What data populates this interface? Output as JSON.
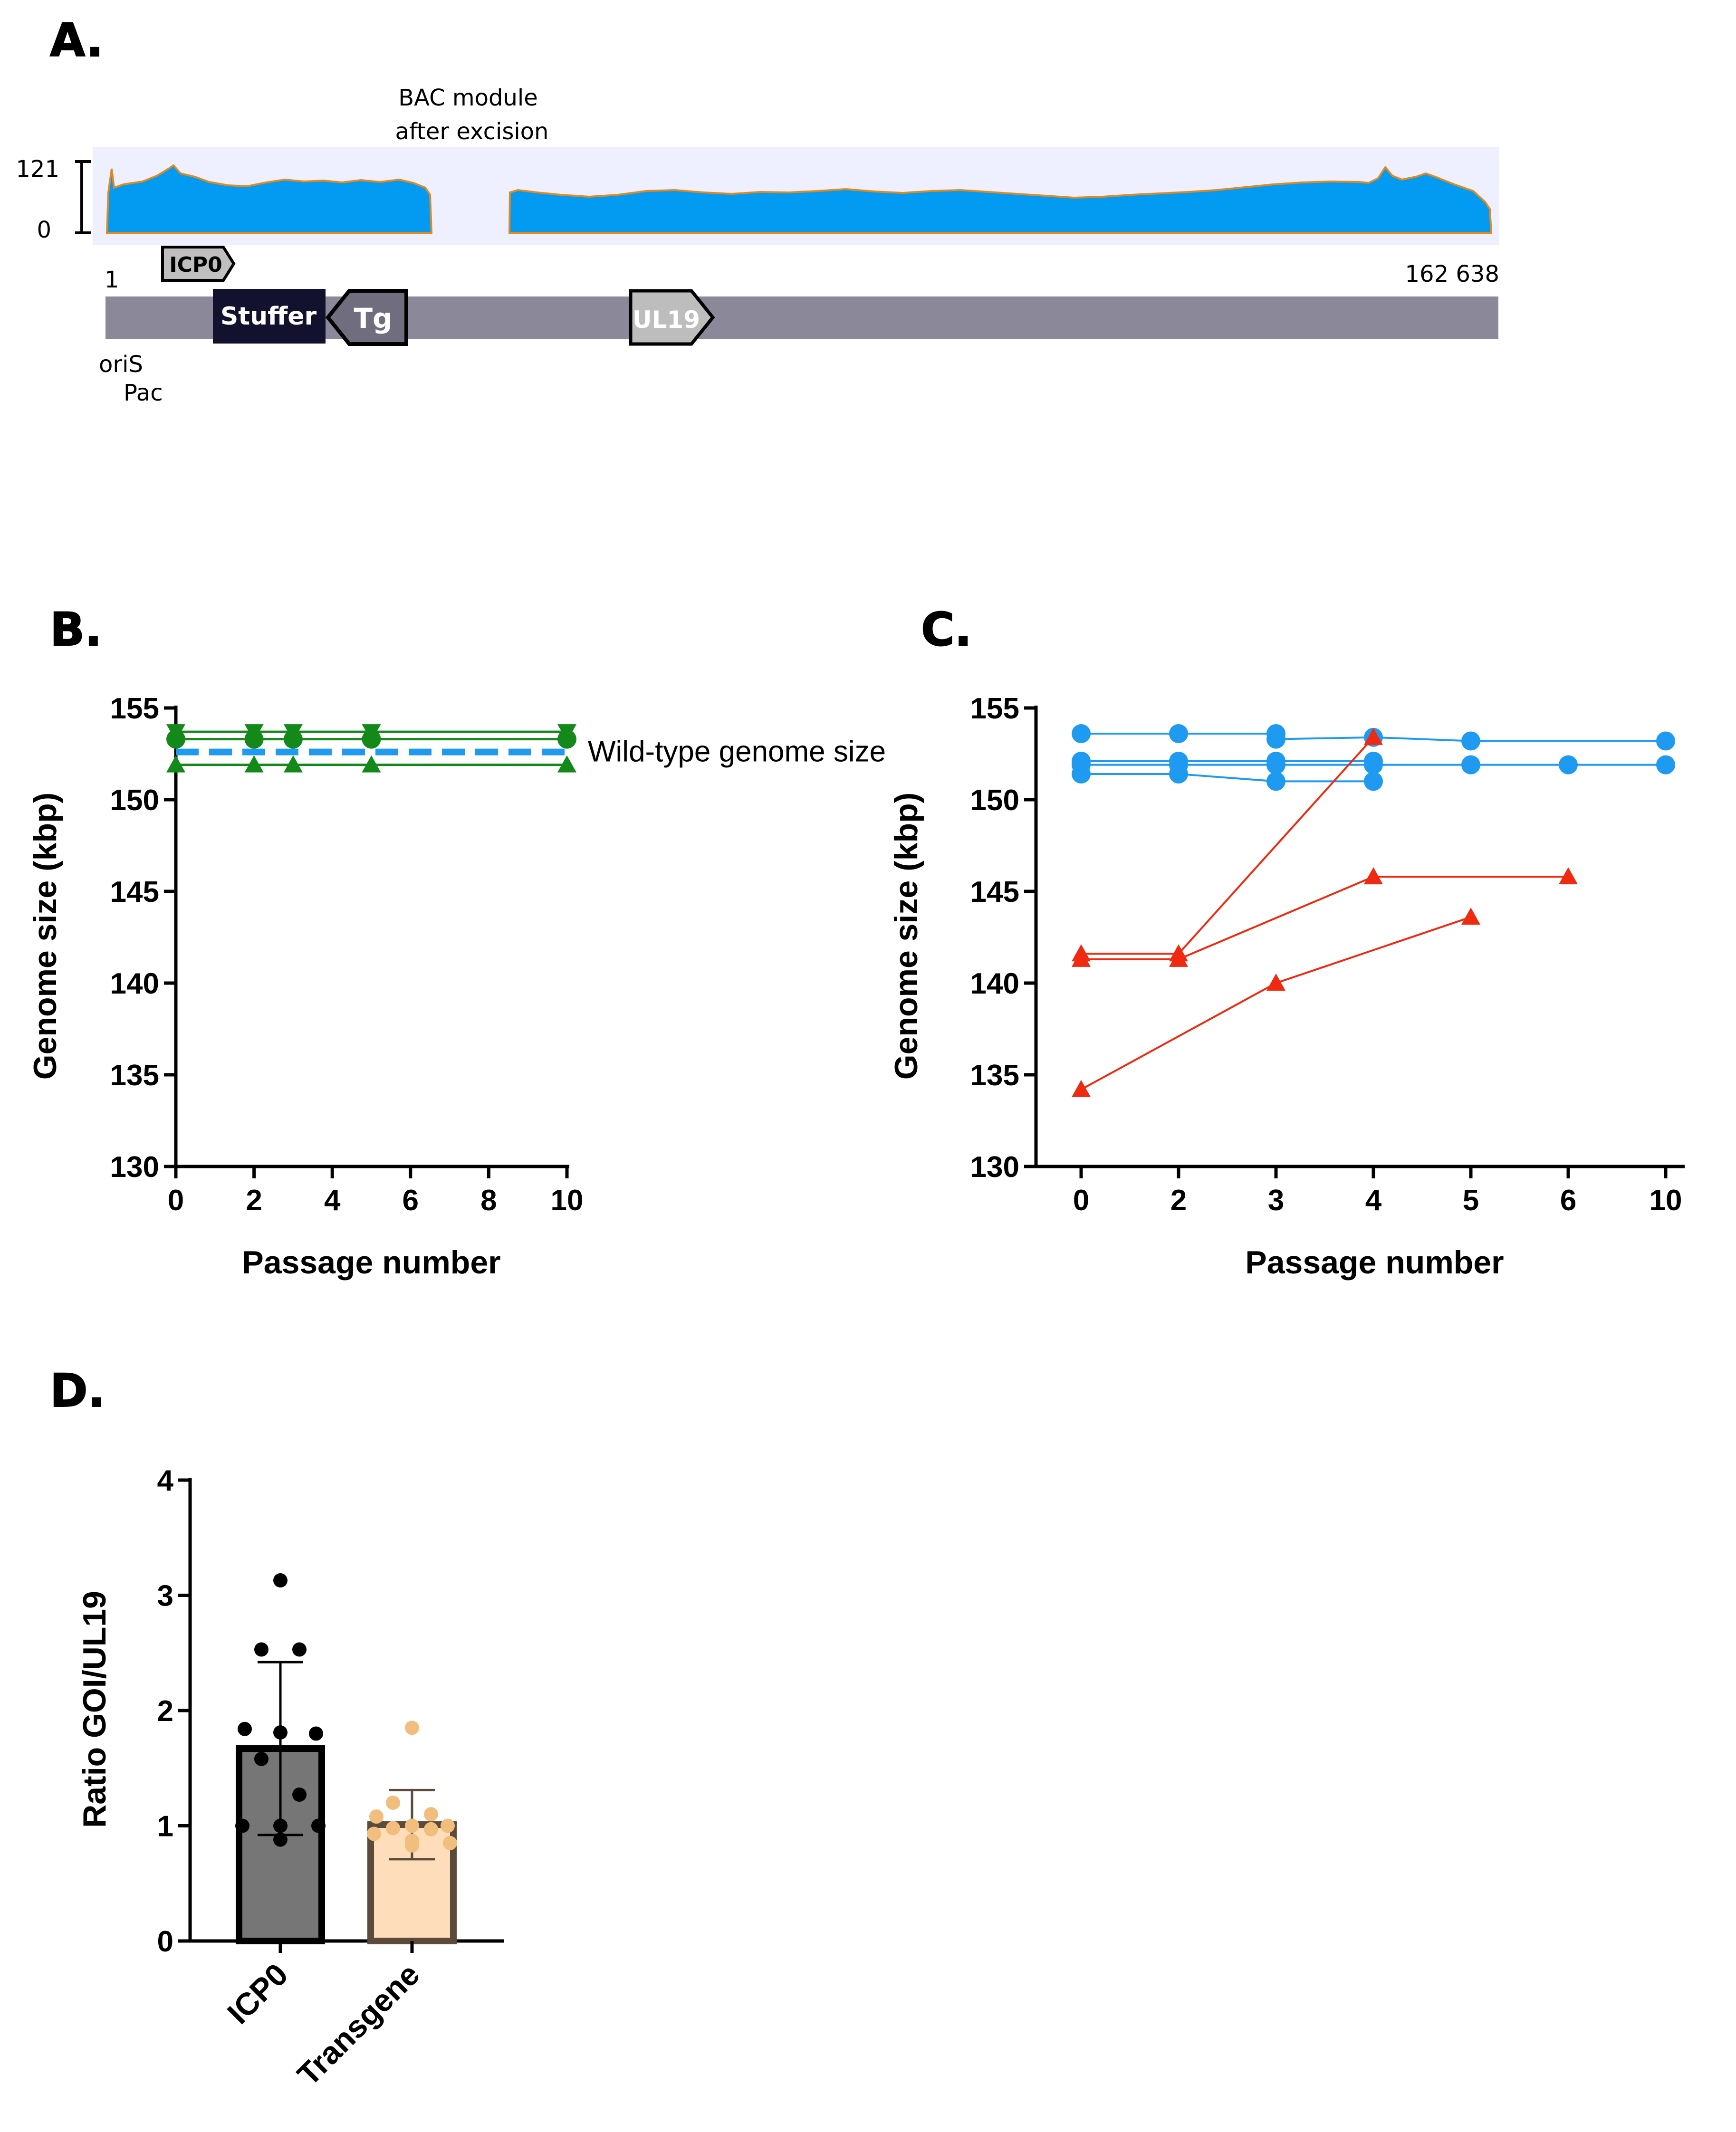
{
  "panel_labels": {
    "a": "A.",
    "b": "B.",
    "c": "C.",
    "d": "D."
  },
  "panel_a": {
    "bac_label_line1": "BAC module",
    "bac_label_line2": "after excision",
    "coverage_max": "121",
    "coverage_min": "0",
    "position_start": "1",
    "position_end": "162 638",
    "oris": "oriS",
    "pac": "Pac",
    "genes": {
      "icp0": "ICP0",
      "stuffer": "Stuffer",
      "tg": "Tg",
      "ul19": "UL19"
    },
    "colors": {
      "coverage_fill": "#039BF2",
      "coverage_edge": "#E08A1E",
      "coverage_bg": "#EEF0FF",
      "genome_bar": "#8A8899",
      "stuffer": "#12122E"
    }
  },
  "chart_data": [
    {
      "id": "B",
      "type": "line",
      "title": "",
      "xlabel": "Passage number",
      "ylabel": "Genome size (kbp)",
      "xlim": [
        0,
        10
      ],
      "ylim": [
        130,
        155
      ],
      "xticks": [
        "0",
        "2",
        "4",
        "6",
        "8",
        "10"
      ],
      "yticks": [
        "130",
        "135",
        "140",
        "145",
        "150",
        "155"
      ],
      "reference_line": {
        "label": "Wild-type genome size",
        "value": 152.6,
        "color": "#1E9BF0"
      },
      "series": [
        {
          "name": "green-1",
          "marker": "triangle-down",
          "color": "#13891A",
          "x": [
            0,
            2,
            3,
            5,
            10
          ],
          "y": [
            153.7,
            153.7,
            153.7,
            153.7,
            153.7
          ]
        },
        {
          "name": "green-2",
          "marker": "circle",
          "color": "#13891A",
          "x": [
            0,
            2,
            3,
            5,
            10
          ],
          "y": [
            153.3,
            153.3,
            153.3,
            153.3,
            153.3
          ]
        },
        {
          "name": "green-3",
          "marker": "triangle-up",
          "color": "#13891A",
          "x": [
            0,
            2,
            3,
            5,
            10
          ],
          "y": [
            151.9,
            151.9,
            151.9,
            151.9,
            151.9
          ]
        }
      ]
    },
    {
      "id": "C",
      "type": "line",
      "title": "",
      "xlabel": "Passage number",
      "ylabel": "Genome size (kbp)",
      "ylim": [
        130,
        155
      ],
      "categories": [
        "0",
        "2",
        "3",
        "4",
        "5",
        "6",
        "10"
      ],
      "yticks": [
        "130",
        "135",
        "140",
        "145",
        "150",
        "155"
      ],
      "series": [
        {
          "name": "blue-1",
          "marker": "circle",
          "color": "#1E9BF0",
          "x": [
            "0",
            "2",
            "3"
          ],
          "y": [
            153.6,
            153.6,
            153.6
          ]
        },
        {
          "name": "blue-2",
          "marker": "circle",
          "color": "#1E9BF0",
          "x": [
            "3",
            "4",
            "5",
            "10"
          ],
          "y": [
            153.3,
            153.4,
            153.2,
            153.2
          ]
        },
        {
          "name": "blue-3",
          "marker": "circle",
          "color": "#1E9BF0",
          "x": [
            "0",
            "2",
            "3",
            "4"
          ],
          "y": [
            152.1,
            152.1,
            152.1,
            152.1
          ]
        },
        {
          "name": "blue-4",
          "marker": "circle",
          "color": "#1E9BF0",
          "x": [
            "0",
            "2",
            "3",
            "4",
            "5",
            "6",
            "10"
          ],
          "y": [
            151.9,
            151.9,
            151.9,
            151.9,
            151.9,
            151.9,
            151.9
          ]
        },
        {
          "name": "blue-5",
          "marker": "circle",
          "color": "#1E9BF0",
          "x": [
            "0",
            "2",
            "3",
            "4"
          ],
          "y": [
            151.4,
            151.4,
            151.0,
            151.0
          ]
        },
        {
          "name": "red-1",
          "marker": "triangle-up",
          "color": "#F02A10",
          "x": [
            "0",
            "2",
            "4"
          ],
          "y": [
            141.6,
            141.6,
            153.4
          ]
        },
        {
          "name": "red-2",
          "marker": "triangle-up",
          "color": "#F02A10",
          "x": [
            "0",
            "2",
            "4",
            "6"
          ],
          "y": [
            141.3,
            141.3,
            145.8,
            145.8
          ]
        },
        {
          "name": "red-3",
          "marker": "triangle-up",
          "color": "#F02A10",
          "x": [
            "0",
            "3",
            "5"
          ],
          "y": [
            134.2,
            140.0,
            143.6
          ]
        }
      ]
    },
    {
      "id": "D",
      "type": "bar",
      "title": "",
      "xlabel": "",
      "ylabel": "Ratio GOI/UL19",
      "ylim": [
        0,
        4
      ],
      "yticks": [
        "0",
        "1",
        "2",
        "3",
        "4"
      ],
      "categories": [
        "ICP0",
        "Transgene"
      ],
      "values": [
        1.67,
        1.01
      ],
      "error_sd": [
        0.75,
        0.3
      ],
      "bar_colors": [
        "#767676",
        "#FDDDBA"
      ],
      "bar_edge_colors": [
        "#000000",
        "#5C4A3A"
      ],
      "point_colors": [
        "#000000",
        "#F2BE7E"
      ],
      "points": [
        [
          3.13,
          2.53,
          2.53,
          1.84,
          1.81,
          1.8,
          1.58,
          1.27,
          1.0,
          1.0,
          1.0,
          0.88
        ],
        [
          1.85,
          1.2,
          1.1,
          1.08,
          1.0,
          1.0,
          0.98,
          0.97,
          0.93,
          0.87,
          0.85,
          0.83
        ]
      ]
    }
  ]
}
